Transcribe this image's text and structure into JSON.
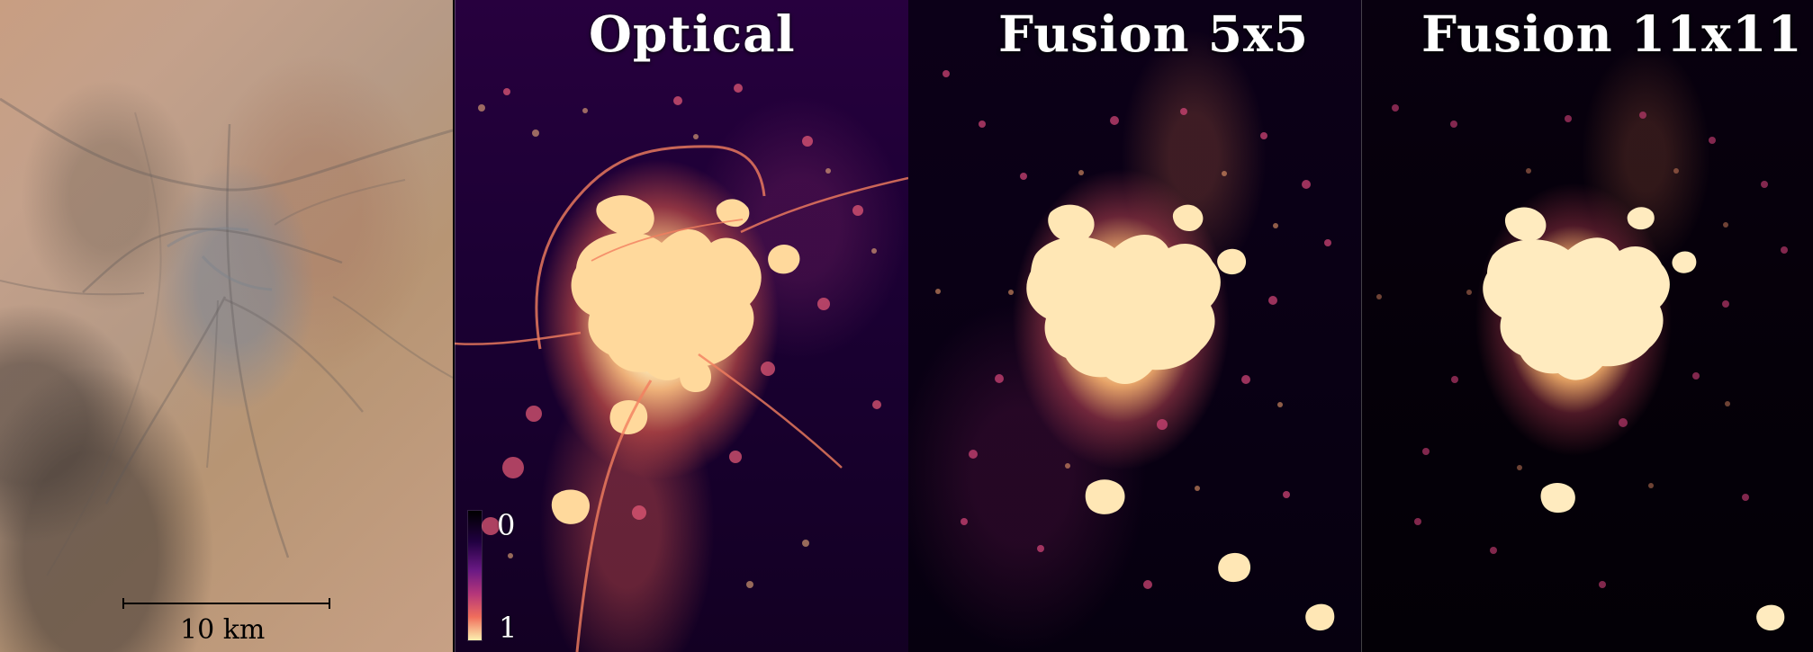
{
  "figure": {
    "panels": [
      {
        "id": "satellite",
        "title": ""
      },
      {
        "id": "optical",
        "title": "Optical"
      },
      {
        "id": "fusion5x5",
        "title": "Fusion 5x5"
      },
      {
        "id": "fusion11x11",
        "title": "Fusion 11x11"
      }
    ],
    "scale_bar": {
      "label": "10 km"
    },
    "colorbar": {
      "top_label": "0",
      "bottom_label": "1"
    }
  }
}
